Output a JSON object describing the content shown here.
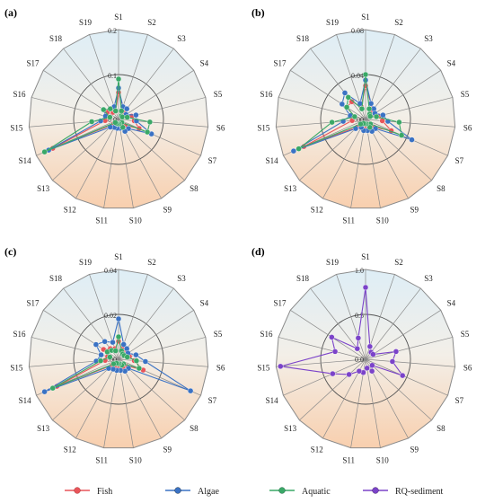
{
  "figure": {
    "panel_labels": [
      "(a)",
      "(b)",
      "(c)",
      "(d)"
    ],
    "legend": [
      {
        "label": "Fish",
        "color": "#e8555a"
      },
      {
        "label": "Algae",
        "color": "#3a72c4"
      },
      {
        "label": "Aquatic",
        "color": "#3aa867"
      },
      {
        "label": "RQ-sediment",
        "color": "#7b43c9"
      }
    ]
  },
  "chart_data": [
    {
      "type": "radar",
      "panel": "(a)",
      "categories": [
        "S1",
        "S2",
        "S3",
        "S4",
        "S5",
        "S6",
        "S7",
        "S8",
        "S9",
        "S10",
        "S11",
        "S12",
        "S13",
        "S14",
        "S15",
        "S16",
        "S17",
        "S18",
        "S19"
      ],
      "rings": [
        0.0,
        0.1,
        0.2
      ],
      "ring_labels": [
        "0.0",
        "0.1",
        "0.2"
      ],
      "ylim": [
        0,
        0.2
      ],
      "series": [
        {
          "name": "Fish",
          "color": "#e8555a",
          "values": [
            0.06,
            0.03,
            0.02,
            0.01,
            0.03,
            0.035,
            0.05,
            0.02,
            0.02,
            0.01,
            0.01,
            0.01,
            0.015,
            0.16,
            0.03,
            0.02,
            0.03,
            0.02,
            0.02
          ]
        },
        {
          "name": "Algae",
          "color": "#3a72c4",
          "values": [
            0.07,
            0.03,
            0.03,
            0.02,
            0.04,
            0.04,
            0.08,
            0.03,
            0.03,
            0.02,
            0.02,
            0.02,
            0.025,
            0.17,
            0.04,
            0.03,
            0.04,
            0.03,
            0.03
          ]
        },
        {
          "name": "Aquatic",
          "color": "#3aa867",
          "values": [
            0.09,
            0.02,
            0.01,
            0.01,
            0.02,
            0.07,
            0.07,
            0.01,
            0.02,
            0.01,
            0.01,
            0.01,
            0.01,
            0.18,
            0.06,
            0.02,
            0.04,
            0.03,
            0.02
          ]
        }
      ]
    },
    {
      "type": "radar",
      "panel": "(b)",
      "categories": [
        "S1",
        "S2",
        "S3",
        "S4",
        "S5",
        "S6",
        "S7",
        "S8",
        "S9",
        "S10",
        "S11",
        "S12",
        "S13",
        "S14",
        "S15",
        "S16",
        "S17",
        "S18",
        "S19"
      ],
      "rings": [
        0.0,
        0.04,
        0.08
      ],
      "ring_labels": [
        "0.00",
        "0.04",
        "0.08"
      ],
      "ylim": [
        0,
        0.08
      ],
      "series": [
        {
          "name": "Fish",
          "color": "#e8555a",
          "values": [
            0.03,
            0.015,
            0.01,
            0.008,
            0.012,
            0.015,
            0.025,
            0.01,
            0.01,
            0.006,
            0.006,
            0.006,
            0.01,
            0.06,
            0.012,
            0.01,
            0.02,
            0.02,
            0.012
          ]
        },
        {
          "name": "Algae",
          "color": "#3a72c4",
          "values": [
            0.035,
            0.015,
            0.012,
            0.01,
            0.016,
            0.02,
            0.045,
            0.012,
            0.012,
            0.01,
            0.01,
            0.008,
            0.012,
            0.07,
            0.02,
            0.014,
            0.025,
            0.03,
            0.015
          ]
        },
        {
          "name": "Aquatic",
          "color": "#3aa867",
          "values": [
            0.04,
            0.01,
            0.006,
            0.005,
            0.01,
            0.03,
            0.035,
            0.006,
            0.008,
            0.004,
            0.004,
            0.004,
            0.006,
            0.065,
            0.03,
            0.01,
            0.02,
            0.025,
            0.01
          ]
        }
      ]
    },
    {
      "type": "radar",
      "panel": "(c)",
      "categories": [
        "S1",
        "S2",
        "S3",
        "S4",
        "S5",
        "S6",
        "S7",
        "S8",
        "S9",
        "S10",
        "S11",
        "S12",
        "S13",
        "S14",
        "S15",
        "S16",
        "S17",
        "S18",
        "S19"
      ],
      "rings": [
        0.0,
        0.02,
        0.04
      ],
      "ring_labels": [
        "0.00",
        "0.02",
        "0.04"
      ],
      "ylim": [
        0,
        0.04
      ],
      "series": [
        {
          "name": "Fish",
          "color": "#e8555a",
          "values": [
            0.008,
            0.005,
            0.004,
            0.004,
            0.005,
            0.007,
            0.012,
            0.004,
            0.004,
            0.003,
            0.003,
            0.003,
            0.004,
            0.03,
            0.006,
            0.005,
            0.008,
            0.006,
            0.005
          ]
        },
        {
          "name": "Algae",
          "color": "#3a72c4",
          "values": [
            0.018,
            0.007,
            0.006,
            0.005,
            0.008,
            0.012,
            0.035,
            0.006,
            0.006,
            0.005,
            0.005,
            0.005,
            0.006,
            0.036,
            0.01,
            0.008,
            0.012,
            0.01,
            0.008
          ]
        },
        {
          "name": "Aquatic",
          "color": "#3aa867",
          "values": [
            0.01,
            0.004,
            0.003,
            0.003,
            0.004,
            0.008,
            0.01,
            0.003,
            0.003,
            0.002,
            0.002,
            0.002,
            0.003,
            0.032,
            0.008,
            0.004,
            0.006,
            0.005,
            0.004
          ]
        }
      ]
    },
    {
      "type": "radar",
      "panel": "(d)",
      "categories": [
        "S1",
        "S2",
        "S3",
        "S4",
        "S5",
        "S6",
        "S7",
        "S8",
        "S9",
        "S10",
        "S11",
        "S12",
        "S13",
        "S14",
        "S15",
        "S16",
        "S17",
        "S18",
        "S19"
      ],
      "rings": [
        0.0,
        0.5,
        1.0
      ],
      "ring_labels": [
        "0.0",
        "0.5",
        "1.0"
      ],
      "ylim": [
        0,
        1.0
      ],
      "series": [
        {
          "name": "RQ-sediment",
          "color": "#7b43c9",
          "values": [
            0.8,
            0.15,
            0.1,
            0.1,
            0.35,
            0.3,
            0.45,
            0.1,
            0.15,
            0.1,
            0.15,
            0.15,
            0.25,
            0.4,
            0.95,
            0.35,
            0.45,
            0.15,
            0.25
          ]
        }
      ]
    }
  ]
}
